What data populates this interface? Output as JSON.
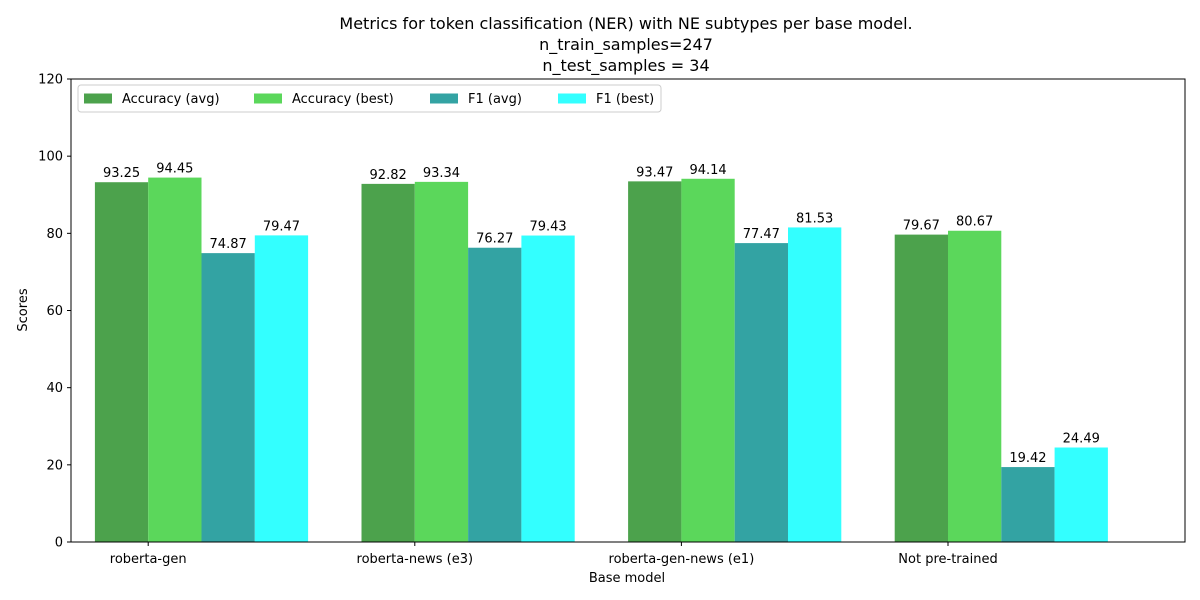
{
  "chart_data": {
    "type": "bar",
    "title_lines": [
      "Metrics for token classification (NER) with NE subtypes per base model.",
      "n_train_samples=247",
      "n_test_samples = 34"
    ],
    "xlabel": "Base model",
    "ylabel": "Scores",
    "ylim": [
      0,
      120
    ],
    "yticks": [
      0,
      20,
      40,
      60,
      80,
      100,
      120
    ],
    "grid": false,
    "legend_position": "top-left",
    "categories": [
      "roberta-gen",
      "roberta-news (e3)",
      "roberta-gen-news (e1)",
      "Not pre-trained"
    ],
    "series": [
      {
        "name": "Accuracy (avg)",
        "color": "#4ca24c",
        "values": [
          93.25,
          92.82,
          93.47,
          79.67
        ]
      },
      {
        "name": "Accuracy (best)",
        "color": "#5bd75b",
        "values": [
          94.45,
          93.34,
          94.14,
          80.67
        ]
      },
      {
        "name": "F1 (avg)",
        "color": "#33a3a3",
        "values": [
          74.87,
          76.27,
          77.47,
          19.42
        ]
      },
      {
        "name": "F1 (best)",
        "color": "#33ffff",
        "values": [
          79.47,
          79.43,
          81.53,
          24.49
        ]
      }
    ]
  }
}
